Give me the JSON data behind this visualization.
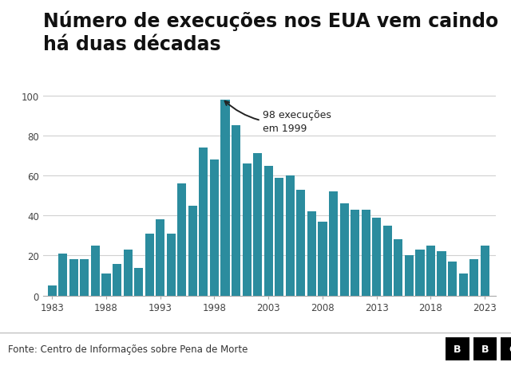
{
  "title_line1": "Número de execuções nos EUA vem caindo",
  "title_line2": "há duas décadas",
  "years": [
    1983,
    1984,
    1985,
    1986,
    1987,
    1988,
    1989,
    1990,
    1991,
    1992,
    1993,
    1994,
    1995,
    1996,
    1997,
    1998,
    1999,
    2000,
    2001,
    2002,
    2003,
    2004,
    2005,
    2006,
    2007,
    2008,
    2009,
    2010,
    2011,
    2012,
    2013,
    2014,
    2015,
    2016,
    2017,
    2018,
    2019,
    2020,
    2021,
    2022,
    2023
  ],
  "values": [
    5,
    21,
    18,
    18,
    25,
    11,
    16,
    23,
    14,
    31,
    38,
    31,
    56,
    45,
    74,
    68,
    98,
    85,
    66,
    71,
    65,
    59,
    60,
    53,
    42,
    37,
    52,
    46,
    43,
    43,
    39,
    35,
    28,
    20,
    23,
    25,
    22,
    17,
    11,
    18,
    25
  ],
  "bar_color": "#2b8c9e",
  "annotation_text": "98 execuções\nem 1999",
  "annotation_year": 1999,
  "annotation_value": 98,
  "source_text": "Fonte: Centro de Informações sobre Pena de Morte",
  "ylim": [
    0,
    105
  ],
  "yticks": [
    0,
    20,
    40,
    60,
    80,
    100
  ],
  "xticks": [
    1983,
    1988,
    1993,
    1998,
    2003,
    2008,
    2013,
    2018,
    2023
  ],
  "title_fontsize": 17,
  "grid_color": "#d0d0d0",
  "background_color": "#ffffff",
  "footer_bg": "#f2f2f2",
  "footer_border": "#bbbbbb",
  "text_color": "#222222",
  "tick_color": "#444444",
  "xlim_left": 1982.2,
  "xlim_right": 2024.0
}
